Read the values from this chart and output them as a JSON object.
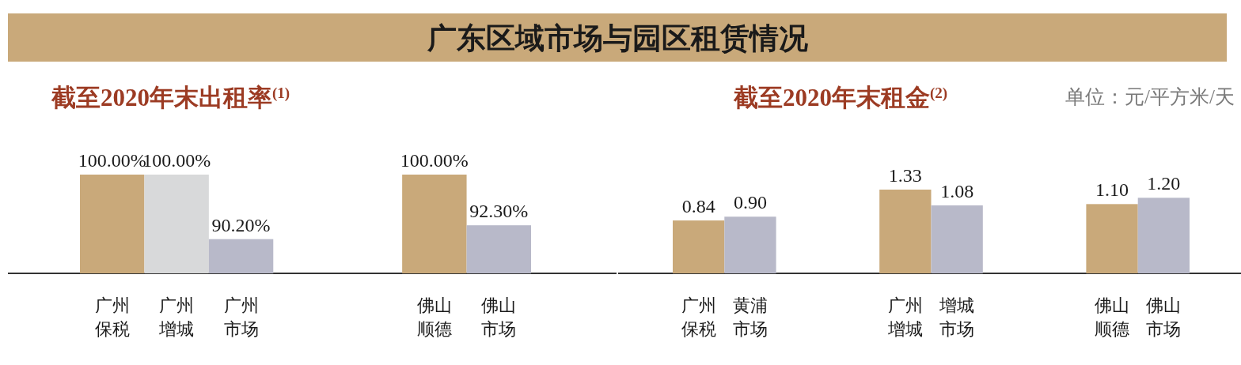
{
  "chart_data": [
    {
      "type": "other",
      "title": "广东区域市场与园区租赁情况"
    },
    {
      "type": "bar",
      "title": "截至2020年末出租率$^{(1)}$",
      "categories": [
        "广州保税",
        "广州增城",
        "广州市场",
        null,
        null,
        "佛山顺德",
        "佛山市场"
      ],
      "values": [
        100,
        100,
        90.2,
        null,
        null,
        100,
        92.3
      ],
      "colors": [
        "#c9a97a",
        "#d8d9da",
        "#b8b9c9",
        null,
        null,
        "#c9a97a",
        "#b8b9c9"
      ],
      "value_labels": [
        "100.00%",
        "100.00%",
        "90.20%",
        null,
        null,
        "100.00%",
        "92.30%"
      ],
      "ylim": [
        85,
        100
      ],
      "tick_labels": "x"
    },
    {
      "type": "bar",
      "title": "截至2020年末租金$^{(2)}$",
      "subtitle": "单位：元/平方米/天",
      "categories": [
        "广州保税",
        "黄浦市场",
        null,
        null,
        "广州增城",
        "增城市场",
        null,
        null,
        "佛山顺德",
        "佛山市场"
      ],
      "values": [
        0.84,
        0.9,
        null,
        null,
        1.33,
        1.08,
        null,
        null,
        1.1,
        1.2
      ],
      "colors": [
        "#c9a97a",
        "#b8b9c9",
        null,
        null,
        "#c9a97a",
        "#b8b9c9",
        null,
        null,
        "#c9a97a",
        "#b8b9c9"
      ],
      "value_labels": [
        "0.84",
        "0.90",
        null,
        null,
        "1.33",
        "1.08",
        null,
        null,
        "1.10",
        "1.20"
      ],
      "ylim": [
        0,
        1.33
      ],
      "tick_labels": "x"
    }
  ]
}
